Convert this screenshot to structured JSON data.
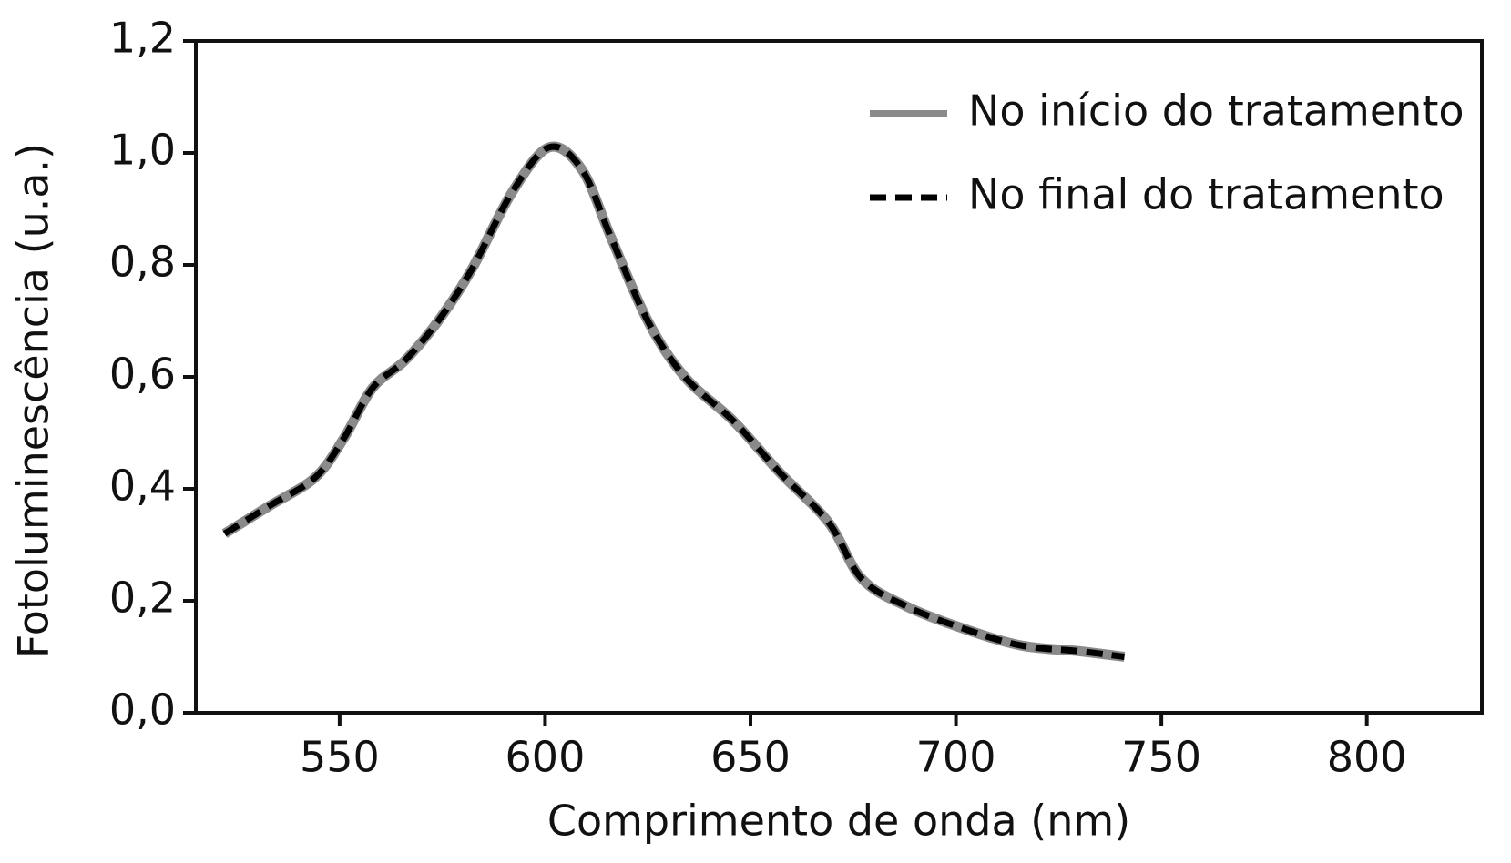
{
  "chart_data": {
    "type": "line",
    "x_label": "Comprimento de onda (nm)",
    "y_label": "Fotoluminescência (u.a.)",
    "x": [
      522,
      533,
      544,
      551,
      558,
      566,
      574,
      582,
      592,
      601,
      609,
      616,
      625,
      634,
      646,
      657,
      669,
      677,
      688,
      702,
      716,
      730,
      741
    ],
    "series": [
      {
        "name": "No início do tratamento",
        "color": "#8a8a8a",
        "style": "solid",
        "values": [
          0.32,
          0.37,
          0.42,
          0.49,
          0.58,
          0.63,
          0.7,
          0.79,
          0.93,
          1.01,
          0.97,
          0.85,
          0.7,
          0.6,
          0.52,
          0.43,
          0.34,
          0.24,
          0.19,
          0.15,
          0.12,
          0.11,
          0.1
        ]
      },
      {
        "name": "No final do tratamento",
        "color": "#000000",
        "style": "dashed",
        "values": [
          0.32,
          0.37,
          0.42,
          0.49,
          0.58,
          0.63,
          0.7,
          0.79,
          0.93,
          1.01,
          0.97,
          0.85,
          0.7,
          0.6,
          0.52,
          0.43,
          0.34,
          0.24,
          0.19,
          0.15,
          0.12,
          0.11,
          0.1
        ]
      }
    ],
    "xlim": [
      515,
      828
    ],
    "xticks": [
      550,
      600,
      650,
      700,
      750,
      800
    ],
    "ylim": [
      0,
      1.2
    ],
    "yticks": [
      {
        "value": 0,
        "label": "0,0"
      },
      {
        "value": 0.2,
        "label": "0,2"
      },
      {
        "value": 0.4,
        "label": "0,4"
      },
      {
        "value": 0.6,
        "label": "0,6"
      },
      {
        "value": 0.8,
        "label": "0,8"
      },
      {
        "value": 1.0,
        "label": "1,0"
      },
      {
        "value": 1.2,
        "label": "1,2"
      }
    ],
    "legend": "upper right",
    "grid": false
  }
}
